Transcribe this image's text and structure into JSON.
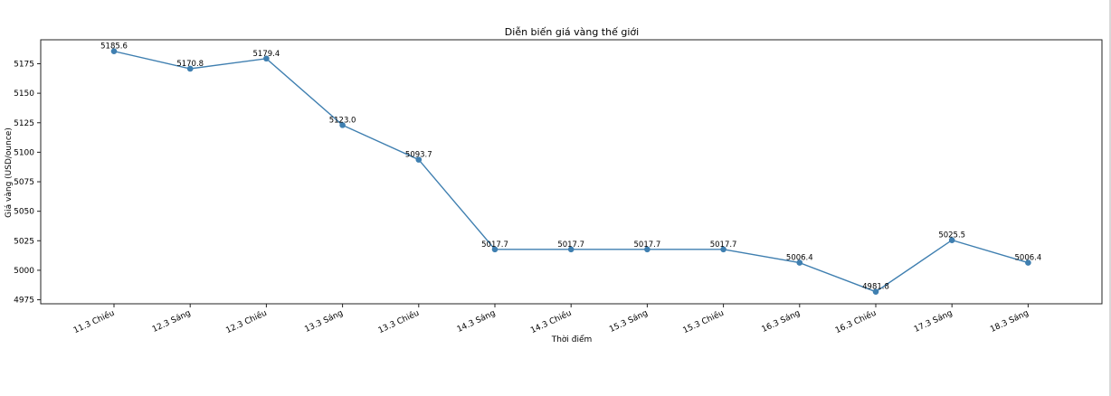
{
  "chart_data": {
    "type": "line",
    "title": "Diễn biến giá vàng thế giới",
    "xlabel": "Thời điểm",
    "ylabel": "Giá vàng (USD/ounce)",
    "categories": [
      "11.3 Chiều",
      "12.3 Sáng",
      "12.3 Chiều",
      "13.3 Sáng",
      "13.3 Chiều",
      "14.3 Sáng",
      "14.3 Chiều",
      "15.3 Sáng",
      "15.3 Chiều",
      "16.3 Sáng",
      "16.3 Chiều",
      "17.3 Sáng",
      "18.3 Sáng"
    ],
    "values": [
      5185.6,
      5170.8,
      5179.4,
      5123.0,
      5093.7,
      5017.7,
      5017.7,
      5017.7,
      5017.7,
      5006.4,
      4981.8,
      5025.5,
      5006.4
    ],
    "data_labels": [
      "5185.6",
      "5170.8",
      "5179.4",
      "5123.0",
      "5093.7",
      "5017.7",
      "5017.7",
      "5017.7",
      "5017.7",
      "5006.4",
      "4981.8",
      "5025.5",
      "5006.4"
    ],
    "yticks": [
      4975,
      5000,
      5025,
      5050,
      5075,
      5100,
      5125,
      5150,
      5175
    ],
    "ylim": [
      4971.6,
      5195.3
    ],
    "grid": false,
    "legend": "none",
    "line_color": "#3f7fb0",
    "marker_color": "#3f7fb0"
  }
}
